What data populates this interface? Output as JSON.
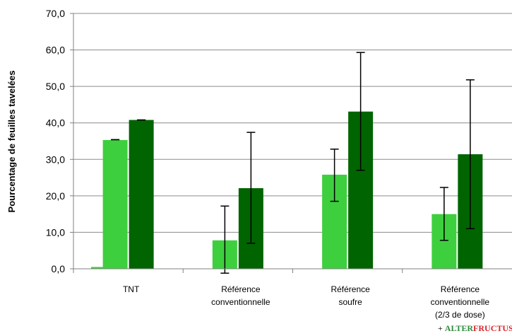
{
  "chart_data": {
    "type": "bar",
    "ylabel": "Pourcentage  de feuilles  tavelées",
    "ylim": [
      0,
      70
    ],
    "yticks": [
      "0,0",
      "10,0",
      "20,0",
      "30,0",
      "40,0",
      "50,0",
      "60,0",
      "70,0"
    ],
    "grid": true,
    "categories": [
      [
        "TNT"
      ],
      [
        "Référence",
        "conventionnelle"
      ],
      [
        "Référence",
        "soufre"
      ],
      [
        "Référence",
        "conventionnelle",
        "(2/3 de dose)"
      ]
    ],
    "series": [
      {
        "color": "#3ecf3e",
        "values": [
          0.5,
          7.8,
          25.8,
          15.0
        ],
        "err_low": [
          0.5,
          -1.2,
          18.5,
          7.8
        ],
        "err_high": [
          0.5,
          17.2,
          32.8,
          22.3
        ],
        "err": [
          false,
          true,
          true,
          true
        ]
      },
      {
        "color": "#006400",
        "values": [
          40.8,
          22.1,
          43.1,
          31.4
        ],
        "err_low": [
          40.8,
          7.0,
          27.0,
          11.0
        ],
        "err_high": [
          40.8,
          37.4,
          59.3,
          51.8
        ],
        "err": [
          true,
          true,
          true,
          true
        ]
      }
    ],
    "extra_bar": {
      "color": "#3ecf3e",
      "category_index": 0,
      "value": 35.3,
      "err": 35.4
    },
    "footer": {
      "plus": "+ ",
      "part1": "ALTER",
      "part2": "FRUCTUS"
    }
  }
}
